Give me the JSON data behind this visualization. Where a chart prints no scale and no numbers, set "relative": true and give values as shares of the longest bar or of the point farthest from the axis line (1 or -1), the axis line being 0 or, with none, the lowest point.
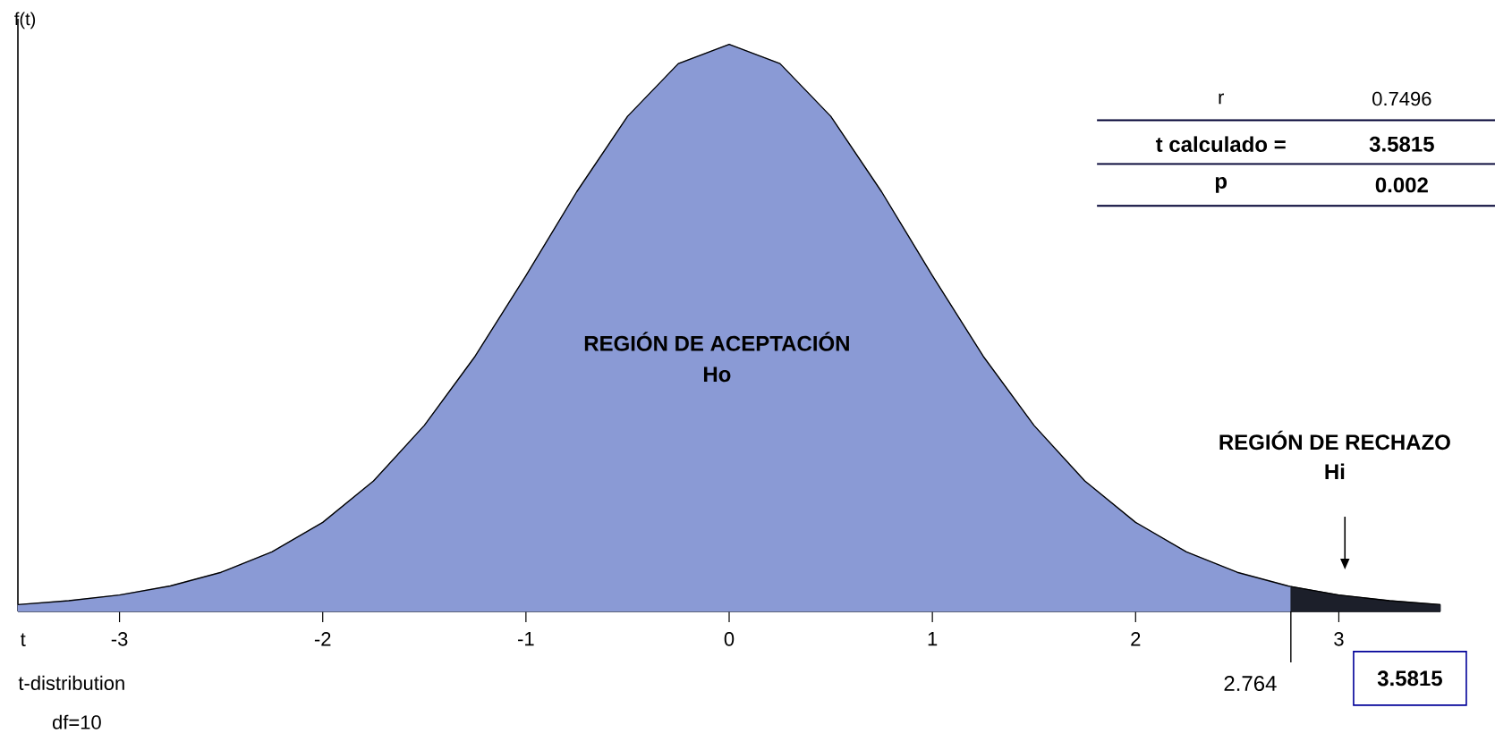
{
  "chart_data": {
    "type": "area",
    "relative": true,
    "xlabel": "t",
    "ylabel": "f(t)",
    "xlim": [
      -3.5,
      3.5
    ],
    "xticks": [
      -3,
      -2,
      -1,
      0,
      1,
      2,
      3
    ],
    "series": [
      {
        "color": "#8a9ad5",
        "x": [
          -3.5,
          -3.25,
          -3,
          -2.75,
          -2.5,
          -2.25,
          -2,
          -1.75,
          -1.5,
          -1.25,
          -1,
          -0.75,
          -0.5,
          -0.25,
          0,
          0.25,
          0.5,
          0.75,
          1,
          1.25,
          1.5,
          1.75,
          2,
          2.25,
          2.5,
          2.75,
          2.764
        ],
        "values": [
          0.012,
          0.019,
          0.029,
          0.045,
          0.069,
          0.105,
          0.157,
          0.23,
          0.328,
          0.45,
          0.592,
          0.74,
          0.873,
          0.966,
          1,
          0.966,
          0.873,
          0.74,
          0.592,
          0.45,
          0.328,
          0.23,
          0.157,
          0.105,
          0.069,
          0.045,
          0.044
        ]
      },
      {
        "color": "#1c1f2a",
        "x": [
          2.764,
          3,
          3.25,
          3.5
        ],
        "values": [
          0.044,
          0.029,
          0.019,
          0.012
        ]
      }
    ],
    "ref_lines": [
      {
        "axis": "x",
        "value": 2.764,
        "label": "2.764"
      }
    ],
    "annotations": [
      "REGIÓN DE ACEPTACIÓN",
      "Ho",
      "REGIÓN DE RECHAZO",
      "Hi",
      "r",
      "0.7496",
      "t calculado =",
      "3.5815",
      "p",
      "0.002",
      "t-distribution",
      "df=10",
      "3.5815"
    ]
  }
}
